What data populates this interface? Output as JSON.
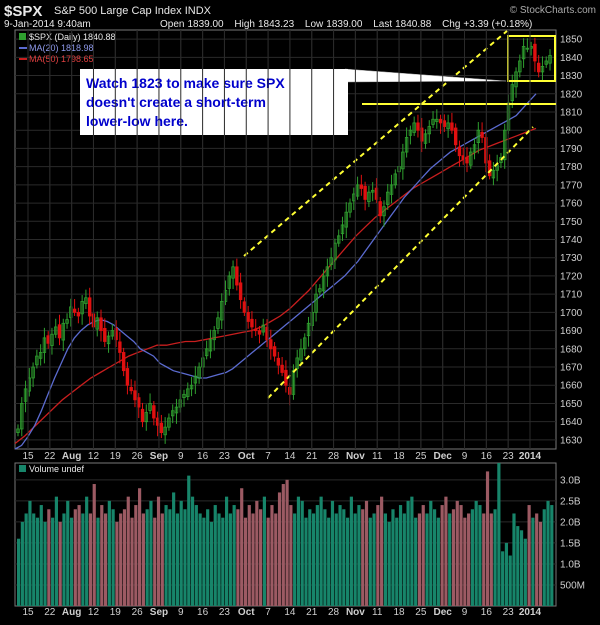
{
  "header": {
    "symbol": "$SPX",
    "name": "S&P 500 Large Cap Index",
    "exchange": "INDX",
    "datetime": "9-Jan-2014 9:40am",
    "open_label": "Open",
    "open": "1839.00",
    "high_label": "High",
    "high": "1843.23",
    "low_label": "Low",
    "low": "1839.00",
    "last_label": "Last",
    "last": "1840.88",
    "chg_label": "Chg",
    "chg": "+3.39 (+0.18%)",
    "watermark": "© StockCharts.com"
  },
  "legend": {
    "price": "$SPX (Daily) 1840.88",
    "ma20": "MA(20) 1818.98",
    "ma50": "MA(50) 1798.65",
    "volume": "Volume undef"
  },
  "annotation": {
    "text_lines": [
      "Watch 1823 to make sure SPX",
      "doesn't create a short-term",
      "lower-low here."
    ]
  },
  "colors": {
    "up": "#2fa02f",
    "down": "#e01010",
    "vol_up": "#17856a",
    "vol_down": "#9c5a63",
    "ma20": "#5b6bd0",
    "ma50": "#c81e1e",
    "trend": "#ffff33",
    "annot_text": "#0000cc"
  },
  "chart_data": {
    "type": "candlestick",
    "y_ticks": [
      1630,
      1640,
      1650,
      1660,
      1670,
      1680,
      1690,
      1700,
      1710,
      1720,
      1730,
      1740,
      1750,
      1760,
      1770,
      1780,
      1790,
      1800,
      1810,
      1820,
      1830,
      1840,
      1850
    ],
    "ylim": [
      1625,
      1855
    ],
    "x_tick_labels": [
      "15",
      "22",
      "Aug",
      "12",
      "19",
      "26",
      "Sep",
      "9",
      "16",
      "23",
      "Oct",
      "7",
      "14",
      "21",
      "28",
      "Nov",
      "11",
      "18",
      "25",
      "Dec",
      "9",
      "16",
      "23",
      "2014"
    ],
    "volume_ticks": [
      "3.0B",
      "2.5B",
      "2.0B",
      "1.5B",
      "1.0B",
      "500M"
    ],
    "volume_tick_values": [
      3.0,
      2.5,
      2.0,
      1.5,
      1.0,
      0.5
    ],
    "volume_ylim": [
      0,
      3.4
    ],
    "horizontal_levels": [
      1810
    ],
    "price_series": [
      1636,
      1650,
      1658,
      1664,
      1670,
      1676,
      1678,
      1686,
      1683,
      1688,
      1692,
      1686,
      1694,
      1696,
      1703,
      1700,
      1698,
      1706,
      1708,
      1698,
      1692,
      1697,
      1690,
      1684,
      1687,
      1690,
      1685,
      1678,
      1668,
      1660,
      1657,
      1652,
      1648,
      1640,
      1645,
      1650,
      1642,
      1638,
      1634,
      1637,
      1642,
      1646,
      1648,
      1652,
      1655,
      1658,
      1660,
      1665,
      1670,
      1675,
      1680,
      1685,
      1690,
      1697,
      1706,
      1712,
      1720,
      1725,
      1715,
      1707,
      1700,
      1695,
      1692,
      1690,
      1688,
      1693,
      1685,
      1680,
      1676,
      1671,
      1667,
      1660,
      1655,
      1668,
      1675,
      1680,
      1686,
      1694,
      1700,
      1710,
      1713,
      1720,
      1725,
      1730,
      1738,
      1742,
      1748,
      1755,
      1760,
      1765,
      1770,
      1768,
      1762,
      1766,
      1767,
      1762,
      1753,
      1758,
      1766,
      1770,
      1776,
      1780,
      1788,
      1796,
      1800,
      1804,
      1800,
      1794,
      1798,
      1802,
      1806,
      1806,
      1804,
      1802,
      1804,
      1800,
      1792,
      1786,
      1784,
      1782,
      1788,
      1792,
      1800,
      1796,
      1782,
      1775,
      1778,
      1781,
      1785,
      1800,
      1815,
      1825,
      1832,
      1838,
      1846,
      1845,
      1846,
      1838,
      1832,
      1835,
      1838,
      1841
    ],
    "ma20_series": [
      1625,
      1627,
      1632,
      1638,
      1646,
      1655,
      1664,
      1672,
      1680,
      1686,
      1690,
      1693,
      1695,
      1696,
      1695,
      1693,
      1690,
      1687,
      1684,
      1680,
      1678,
      1676,
      1672,
      1670,
      1668,
      1667,
      1666,
      1665,
      1664,
      1664,
      1665,
      1666,
      1667,
      1669,
      1672,
      1675,
      1678,
      1681,
      1684,
      1687,
      1690,
      1693,
      1696,
      1699,
      1702,
      1705,
      1708,
      1711,
      1714,
      1717,
      1720,
      1724,
      1728,
      1733,
      1738,
      1743,
      1748,
      1753,
      1758,
      1763,
      1767,
      1771,
      1775,
      1779,
      1782,
      1785,
      1788,
      1790,
      1792,
      1794,
      1796,
      1798,
      1800,
      1802,
      1804,
      1806,
      1808,
      1812,
      1816,
      1820
    ],
    "ma50_series": [
      1628,
      1632,
      1637,
      1642,
      1647,
      1652,
      1656,
      1660,
      1664,
      1667,
      1670,
      1673,
      1676,
      1678,
      1680,
      1682,
      1682,
      1683,
      1684,
      1684,
      1685,
      1686,
      1687,
      1688,
      1689,
      1690,
      1692,
      1695,
      1698,
      1702,
      1707,
      1712,
      1718,
      1724,
      1730,
      1736,
      1742,
      1747,
      1752,
      1756,
      1760,
      1764,
      1768,
      1771,
      1774,
      1777,
      1780,
      1783,
      1786,
      1789,
      1791,
      1793,
      1795,
      1797,
      1799,
      1801
    ],
    "volume_series": [
      1.6,
      2.0,
      2.2,
      2.5,
      2.2,
      2.1,
      2.4,
      2.0,
      2.3,
      2.1,
      2.6,
      2.0,
      2.2,
      2.5,
      2.1,
      2.3,
      2.4,
      2.2,
      2.6,
      2.2,
      2.9,
      2.1,
      2.4,
      2.2,
      2.5,
      2.3,
      2.0,
      2.2,
      2.3,
      2.6,
      2.1,
      2.4,
      2.8,
      2.2,
      2.3,
      2.5,
      2.1,
      2.6,
      2.2,
      2.4,
      2.3,
      2.7,
      2.2,
      2.5,
      2.3,
      3.1,
      2.6,
      2.4,
      2.2,
      2.1,
      2.3,
      2.0,
      2.4,
      2.2,
      2.1,
      2.6,
      2.2,
      2.4,
      2.3,
      2.8,
      2.1,
      2.4,
      2.2,
      2.5,
      2.3,
      2.6,
      2.1,
      2.4,
      2.2,
      2.7,
      2.9,
      3.0,
      2.4,
      2.2,
      2.6,
      2.5,
      2.1,
      2.3,
      2.2,
      2.4,
      2.6,
      2.3,
      2.1,
      2.5,
      2.2,
      2.4,
      2.3,
      2.1,
      2.6,
      2.2,
      2.4,
      2.3,
      2.5,
      2.1,
      2.2,
      2.4,
      2.6,
      2.2,
      2.0,
      2.3,
      2.1,
      2.4,
      2.2,
      2.5,
      2.6,
      2.1,
      2.2,
      2.4,
      2.2,
      2.5,
      2.3,
      2.1,
      2.4,
      2.6,
      2.2,
      2.3,
      2.5,
      2.4,
      2.1,
      2.2,
      2.3,
      2.5,
      2.4,
      2.2,
      3.2,
      2.2,
      2.3,
      3.4,
      1.3,
      1.5,
      1.2,
      2.2,
      1.9,
      1.8,
      1.6,
      2.4,
      2.1,
      2.2,
      2.0,
      2.3,
      2.5,
      2.4
    ]
  }
}
